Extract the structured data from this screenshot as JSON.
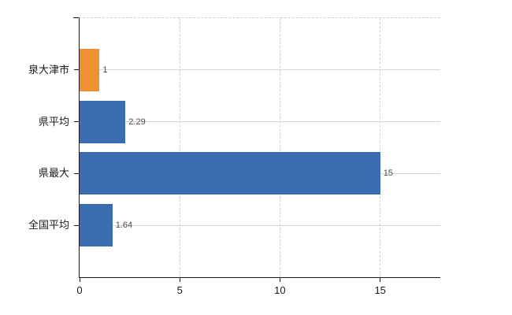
{
  "chart_data": {
    "type": "bar",
    "orientation": "horizontal",
    "title": "",
    "categories": [
      "泉大津市",
      "県平均",
      "県最大",
      "全国平均"
    ],
    "values": [
      1,
      2.29,
      15,
      1.64
    ],
    "value_labels": [
      "1",
      "2.29",
      "15",
      "1.64"
    ],
    "bar_colors": [
      "#ef9132",
      "#3a6cb0",
      "#3a6cb0",
      "#3a6cb0"
    ],
    "xlim": [
      0,
      18
    ],
    "x_tick_labels": [
      "0",
      "5",
      "10",
      "15"
    ],
    "x_tick_values": [
      0,
      5,
      10,
      15
    ],
    "grid": {
      "horizontal": "solid",
      "vertical": "dashed",
      "top_border": "dashed"
    },
    "legend": "none"
  },
  "colors": {
    "background": "#ffffff",
    "axis": "#1a1a1a",
    "grid_horizontal": "#d2dbd2",
    "grid_vertical": "#d7cfd4",
    "bar_blue": "#3a6cb0",
    "bar_orange": "#ef9132",
    "value_label": "#4a4a4a",
    "tick_label": "#1a1a1a"
  }
}
